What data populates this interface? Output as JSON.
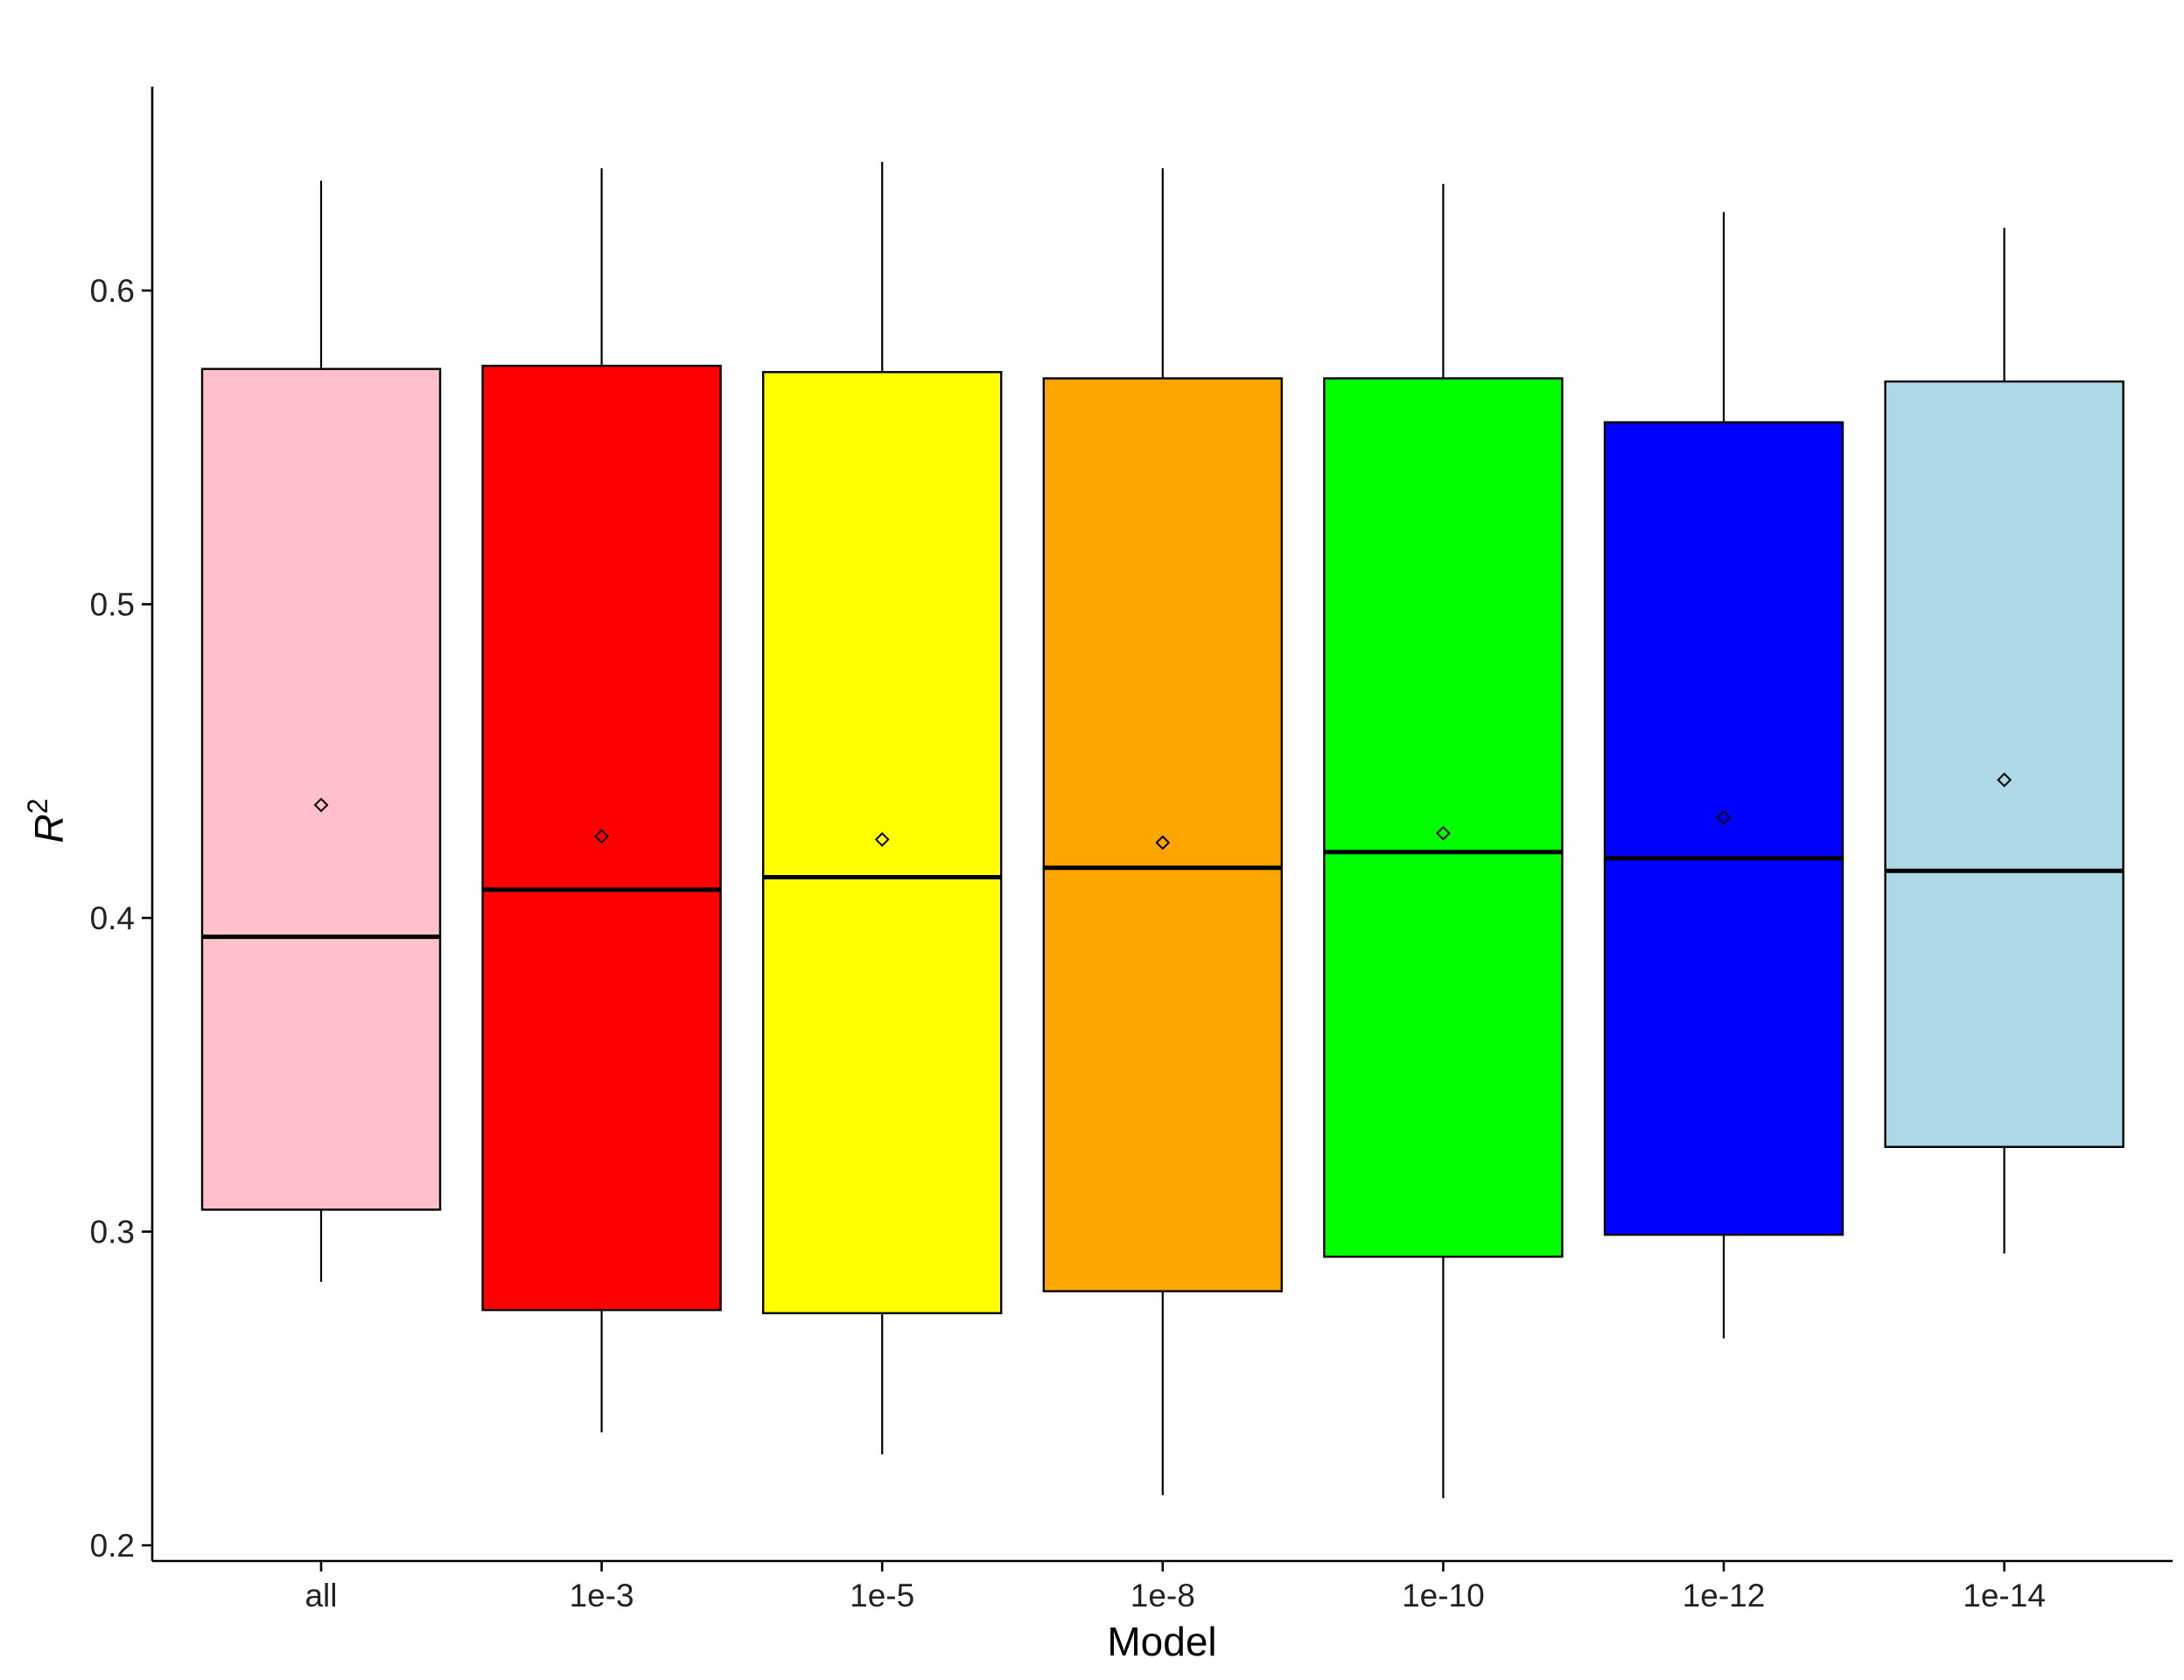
{
  "chart_data": {
    "type": "boxplot",
    "xlabel": "Model",
    "ylabel": "R",
    "ylabel_superscript": "2",
    "ylim": [
      0.195,
      0.665
    ],
    "yticks": [
      0.2,
      0.3,
      0.4,
      0.5,
      0.6
    ],
    "ytick_labels": [
      "0.2",
      "0.3",
      "0.4",
      "0.5",
      "0.6"
    ],
    "grid": false,
    "legend": "none",
    "categories": [
      "all",
      "1e-3",
      "1e-5",
      "1e-8",
      "1e-10",
      "1e-12",
      "1e-14"
    ],
    "boxes": [
      {
        "category": "all",
        "color": "#FFC0CB",
        "whisker_low": 0.284,
        "q1": 0.307,
        "median": 0.394,
        "q3": 0.575,
        "whisker_high": 0.635,
        "mean": 0.436
      },
      {
        "category": "1e-3",
        "color": "#FF0000",
        "whisker_low": 0.236,
        "q1": 0.275,
        "median": 0.409,
        "q3": 0.576,
        "whisker_high": 0.639,
        "mean": 0.426
      },
      {
        "category": "1e-5",
        "color": "#FFFF00",
        "whisker_low": 0.229,
        "q1": 0.274,
        "median": 0.413,
        "q3": 0.574,
        "whisker_high": 0.641,
        "mean": 0.425
      },
      {
        "category": "1e-8",
        "color": "#FFA500",
        "whisker_low": 0.216,
        "q1": 0.281,
        "median": 0.416,
        "q3": 0.572,
        "whisker_high": 0.639,
        "mean": 0.424
      },
      {
        "category": "1e-10",
        "color": "#00FF00",
        "whisker_low": 0.215,
        "q1": 0.292,
        "median": 0.421,
        "q3": 0.572,
        "whisker_high": 0.634,
        "mean": 0.427
      },
      {
        "category": "1e-12",
        "color": "#0000FF",
        "whisker_low": 0.266,
        "q1": 0.299,
        "median": 0.419,
        "q3": 0.558,
        "whisker_high": 0.625,
        "mean": 0.432
      },
      {
        "category": "1e-14",
        "color": "#ADD8E6",
        "whisker_low": 0.293,
        "q1": 0.327,
        "median": 0.415,
        "q3": 0.571,
        "whisker_high": 0.62,
        "mean": 0.444
      }
    ]
  }
}
